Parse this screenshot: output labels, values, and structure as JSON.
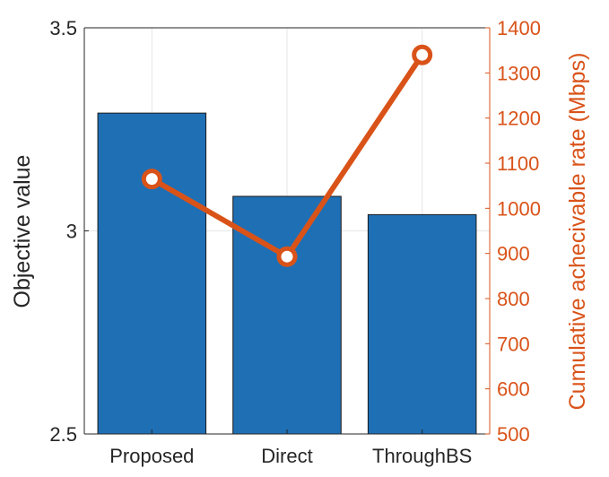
{
  "chart_data": {
    "type": "bar+line",
    "categories": [
      "Proposed",
      "Direct",
      "ThroughBS"
    ],
    "bar_series": {
      "name": "Objective value",
      "values": [
        3.29,
        3.085,
        3.04
      ],
      "color": "#1f6fb5"
    },
    "line_series": {
      "name": "Cumulative achecivable rate (Mbps)",
      "values": [
        1065,
        893,
        1340
      ],
      "color": "#d95319"
    },
    "ylabel_left": "Objective value",
    "ylabel_right": "Cumulative achecivable rate (Mbps)",
    "ylim_left": [
      2.5,
      3.5
    ],
    "ylim_right": [
      500,
      1400
    ],
    "yticks_left": [
      "2.5",
      "3",
      "3.5"
    ],
    "yticks_right": [
      "500",
      "600",
      "700",
      "800",
      "900",
      "1000",
      "1100",
      "1200",
      "1300",
      "1400"
    ],
    "axis_color_left": "#262626",
    "axis_color_right": "#d95319",
    "grid": true
  }
}
